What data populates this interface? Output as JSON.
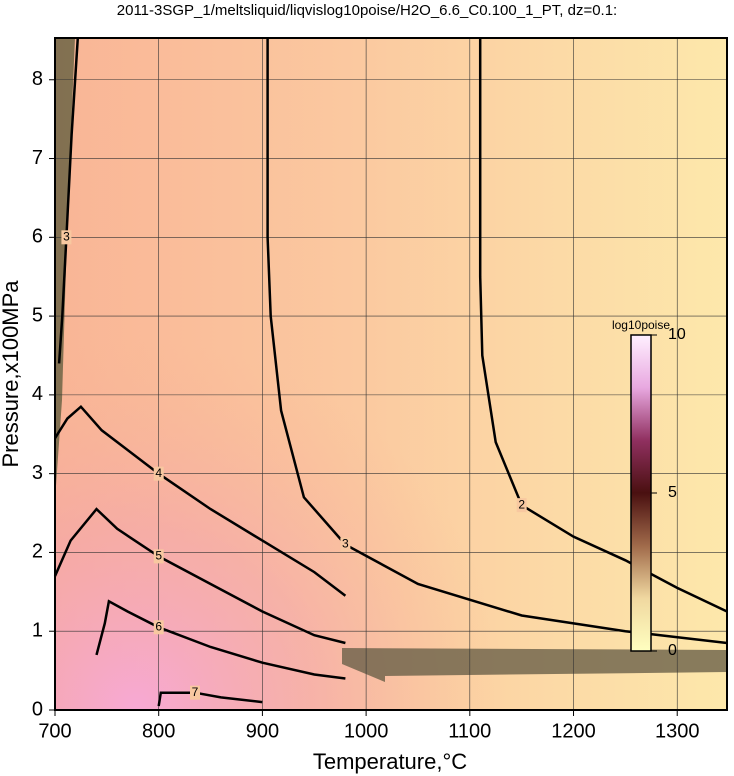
{
  "chart_data": {
    "type": "contour",
    "title": "2011-3SGP_1/meltsliquid/liqvislog10poise/H2O_6.6_C0.100_1_PT, dz=0.1:",
    "xlabel": "Temperature,°C",
    "ylabel": "Pressure,x100MPa",
    "xlim": [
      700,
      1348
    ],
    "ylim": [
      0,
      8.53
    ],
    "xticks": [
      700,
      800,
      900,
      1000,
      1100,
      1200,
      1300
    ],
    "yticks": [
      0,
      1,
      2,
      3,
      4,
      5,
      6,
      7,
      8
    ],
    "grid": true,
    "contours": [
      {
        "level": 2,
        "x": [
          1110,
          1110,
          1112,
          1125,
          1150,
          1200,
          1250,
          1300,
          1348
        ],
        "y": [
          8.53,
          5.5,
          4.5,
          3.4,
          2.6,
          2.2,
          1.9,
          1.55,
          1.25
        ]
      },
      {
        "level": 3,
        "x": [
          905,
          905,
          908,
          918,
          940,
          980,
          1050,
          1150,
          1250,
          1348
        ],
        "y": [
          8.53,
          6.0,
          5.0,
          3.8,
          2.7,
          2.1,
          1.6,
          1.2,
          1.0,
          0.85
        ]
      },
      {
        "level": 3,
        "x": [
          722,
          716,
          711,
          707,
          704
        ],
        "y": [
          8.53,
          7.3,
          6.0,
          5.0,
          4.4
        ]
      },
      {
        "level": 4,
        "x": [
          700,
          712,
          725,
          745,
          800,
          850,
          900,
          950,
          980
        ],
        "y": [
          3.45,
          3.7,
          3.85,
          3.55,
          3.0,
          2.55,
          2.15,
          1.75,
          1.45
        ]
      },
      {
        "level": 5,
        "x": [
          700,
          715,
          740,
          760,
          800,
          850,
          900,
          950,
          980
        ],
        "y": [
          1.7,
          2.15,
          2.55,
          2.3,
          1.95,
          1.6,
          1.25,
          0.95,
          0.85
        ]
      },
      {
        "level": 6,
        "x": [
          740,
          748,
          752,
          770,
          800,
          850,
          900,
          950,
          980
        ],
        "y": [
          0.7,
          1.1,
          1.38,
          1.25,
          1.05,
          0.8,
          0.6,
          0.45,
          0.4
        ]
      },
      {
        "level": 7,
        "x": [
          800,
          802,
          835,
          860,
          900
        ],
        "y": [
          0.05,
          0.22,
          0.22,
          0.16,
          0.1
        ]
      }
    ],
    "colorbar": {
      "label": "log10poise",
      "lim": [
        0,
        10
      ],
      "ticks": [
        0,
        5,
        10
      ],
      "colors": [
        "#ffffc0",
        "#f0d8a0",
        "#a06a4a",
        "#4a1010",
        "#903060",
        "#e8a8e0",
        "#fff0ff"
      ]
    }
  }
}
